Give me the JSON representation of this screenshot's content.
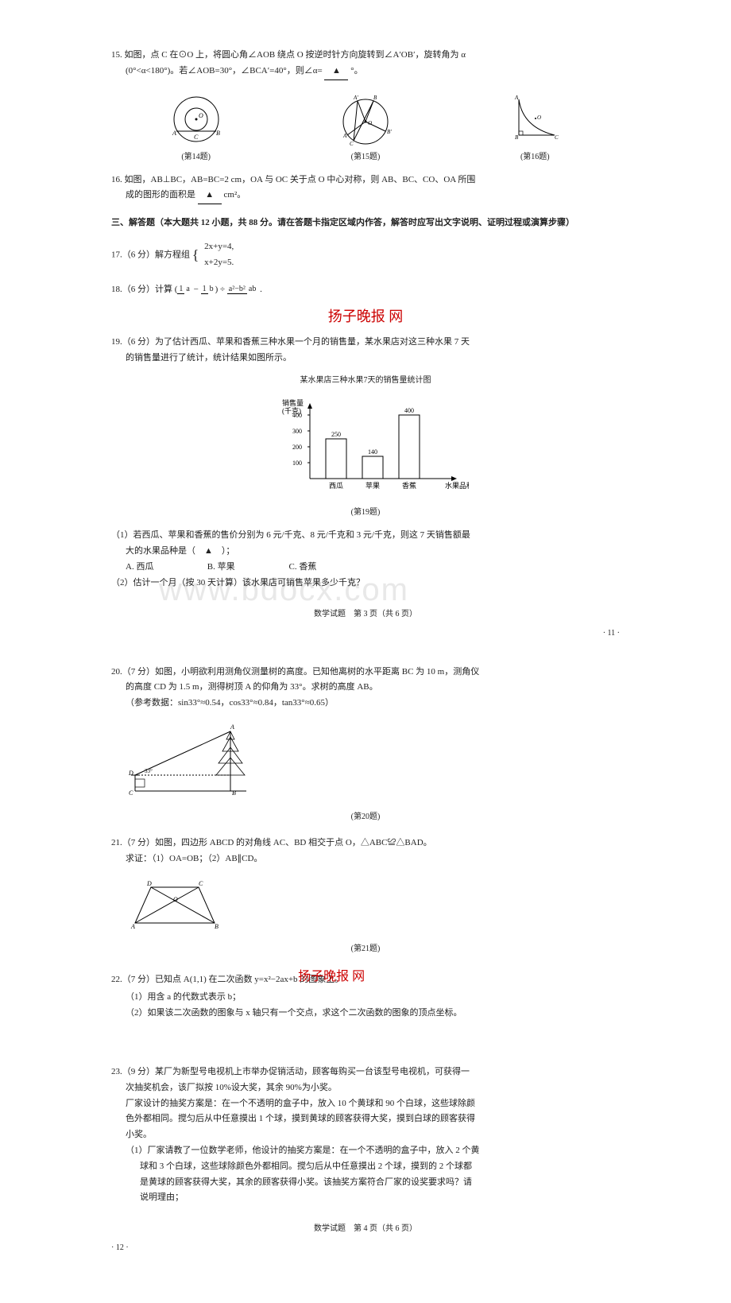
{
  "q15": {
    "text1": "15. 如图，点 C 在⊙O 上，将圆心角∠AOB 绕点 O 按逆时针方向旋转到∠A′OB′，旋转角为 α",
    "text2": "(0°<α<180°)。若∠AOB=30°，∠BCA′=40°，则∠α=",
    "text3": "°。"
  },
  "fig_labels": {
    "f14": "(第14题)",
    "f15": "(第15题)",
    "f16": "(第16题)",
    "f19": "(第19题)",
    "f20": "(第20题)",
    "f21": "(第21题)"
  },
  "q16": {
    "text1": "16. 如图，AB⊥BC，AB=BC=2 cm，OA 与 OC 关于点 O 中心对称，则 AB、BC、CO、OA 所围",
    "text2": "成的图形的面积是",
    "text3": "cm²。"
  },
  "section3": "三、解答题（本大题共 12 小题，共 88 分。请在答题卡指定区域内作答，解答时应写出文字说明、证明过程或演算步骤）",
  "q17": {
    "label": "17.（6 分）解方程组",
    "eq1": "2x+y=4,",
    "eq2": "x+2y=5."
  },
  "q18": {
    "label": "18.（6 分）计算",
    "expr_left_top": "1",
    "expr_left_bot": "a",
    "expr_mid_top": "1",
    "expr_mid_bot": "b",
    "expr_right_top": "a²−b²",
    "expr_right_bot": "ab"
  },
  "q19": {
    "text1": "19.（6 分）为了估计西瓜、苹果和香蕉三种水果一个月的销售量，某水果店对这三种水果 7 天",
    "text2": "的销售量进行了统计，统计结果如图所示。",
    "chart": {
      "title": "某水果店三种水果7天的销售量统计图",
      "y_label_top": "销售量",
      "y_label_bot": "(千克)",
      "y_ticks": [
        "100",
        "200",
        "300",
        "400"
      ],
      "categories": [
        "西瓜",
        "苹果",
        "香蕉"
      ],
      "x_axis_label": "水果品种",
      "values": [
        250,
        140,
        400
      ],
      "bar_labels": [
        "250",
        "140",
        "400"
      ],
      "bar_fill": "#ffffff",
      "bar_stroke": "#000000",
      "axis_color": "#000000"
    },
    "sub1": "（1）若西瓜、苹果和香蕉的售价分别为 6 元/千克、8 元/千克和 3 元/千克，则这 7 天销售额最",
    "sub1b": "大的水果品种是（　▲　）；",
    "optA": "A. 西瓜",
    "optB": "B. 苹果",
    "optC": "C. 香蕉",
    "sub2": "（2）估计一个月（按 30 天计算）该水果店可销售苹果多少千克？"
  },
  "page3_footer": "数学试题　第 3 页（共 6 页）",
  "page3_num": "· 11 ·",
  "q20": {
    "text1": "20.（7 分）如图，小明欲利用测角仪测量树的高度。已知他离树的水平距离 BC 为 10 m，测角仪",
    "text2": "的高度 CD 为 1.5 m，测得树顶 A 的仰角为 33°。求树的高度 AB。",
    "text3": "（参考数据：sin33°≈0.54，cos33°≈0.84，tan33°≈0.65）"
  },
  "q21": {
    "text1": "21.（7 分）如图，四边形 ABCD 的对角线 AC、BD 相交于点 O，△ABC≌△BAD。",
    "text2": "求证：（1）OA=OB；（2）AB∥CD。"
  },
  "q22": {
    "text1": "22.（7 分）已知点 A(1,1) 在二次函数 y=x²−2ax+b 的图象上。",
    "sub1": "（1）用含 a 的代数式表示 b；",
    "sub2": "（2）如果该二次函数的图象与 x 轴只有一个交点，求这个二次函数的图象的顶点坐标。"
  },
  "q23": {
    "text1": "23.（9 分）某厂为新型号电视机上市举办促销活动，顾客每购买一台该型号电视机，可获得一",
    "text2": "次抽奖机会，该厂拟按 10%设大奖，其余 90%为小奖。",
    "text3": "厂家设计的抽奖方案是：在一个不透明的盒子中，放入 10 个黄球和 90 个白球，这些球除颜",
    "text4": "色外都相同。搅匀后从中任意摸出 1 个球，摸到黄球的顾客获得大奖，摸到白球的顾客获得",
    "text5": "小奖。",
    "sub1a": "（1）厂家请教了一位数学老师，他设计的抽奖方案是：在一个不透明的盒子中，放入 2 个黄",
    "sub1b": "球和 3 个白球，这些球除颜色外都相同。搅匀后从中任意摸出 2 个球，摸到的 2 个球都",
    "sub1c": "是黄球的顾客获得大奖，其余的顾客获得小奖。该抽奖方案符合厂家的设奖要求吗？请",
    "sub1d": "说明理由；"
  },
  "page4_footer": "数学试题　第 4 页（共 6 页）",
  "page4_num": "· 12 ·",
  "stamp1": "扬子晚报 网",
  "stamp2": "扬子晚报 网",
  "watermark": "www.bdocx.com",
  "triangle": "▲"
}
